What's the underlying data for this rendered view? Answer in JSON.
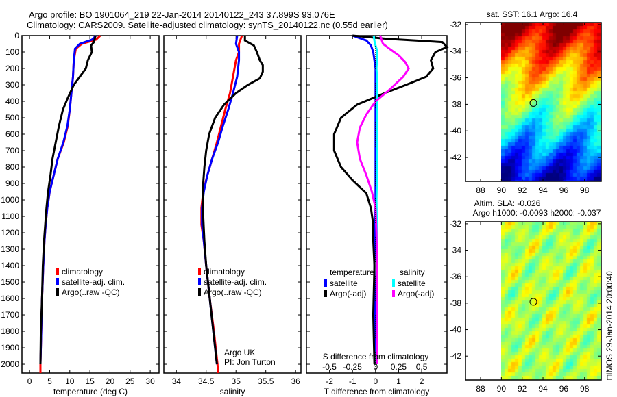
{
  "title_line1": "Argo profile: BO 1901064_219 22-Jan-2014 20140122_243 37.899S 93.076E",
  "title_line2": "Climatology: CARS2009. Satellite-adjusted climatology: synTS_20140122.nc (0.55d earlier)",
  "footer": "IMOS 29-Jan-2014 20:00:40",
  "credit": {
    "line1": "Argo UK",
    "line2": "PI: Jon Turton"
  },
  "colors": {
    "climatology": "#ff0000",
    "satellite": "#0000ff",
    "argo": "#000000",
    "sal_sat": "#00ffff",
    "sal_argo": "#ff00ff"
  },
  "chart_data": [
    {
      "type": "line",
      "name": "temperature",
      "xlabel": "temperature (deg C)",
      "ylabel": "depth",
      "xlim": [
        -1.9,
        32.2
      ],
      "ylim": [
        2054,
        0
      ],
      "xticks": [
        "0",
        "5",
        "10",
        "15",
        "20",
        "25",
        "30"
      ],
      "yticks": [
        "0",
        "100",
        "200",
        "300",
        "400",
        "500",
        "600",
        "700",
        "800",
        "900",
        "1000",
        "1100",
        "1200",
        "1300",
        "1400",
        "1500",
        "1600",
        "1700",
        "1800",
        "1900",
        "2000"
      ],
      "legend": [
        "climatology",
        "satellite-adj. clim.",
        "Argo(..raw -QC)"
      ],
      "series": [
        {
          "name": "climatology",
          "color": "#ff0000",
          "points": [
            [
              17.6,
              0
            ],
            [
              16.5,
              25
            ],
            [
              13,
              50
            ],
            [
              11.5,
              80
            ],
            [
              11,
              150
            ],
            [
              10.8,
              250
            ],
            [
              10.4,
              350
            ],
            [
              10,
              450
            ],
            [
              9.5,
              550
            ],
            [
              8.5,
              650
            ],
            [
              7,
              750
            ],
            [
              6,
              850
            ],
            [
              5,
              950
            ],
            [
              4.4,
              1050
            ],
            [
              4,
              1150
            ],
            [
              3.7,
              1250
            ],
            [
              3.4,
              1400
            ],
            [
              3.1,
              1600
            ],
            [
              2.9,
              1800
            ],
            [
              2.7,
              2000
            ],
            [
              2.7,
              2054
            ]
          ]
        },
        {
          "name": "satellite-adj. clim.",
          "color": "#0000ff",
          "points": [
            [
              16.5,
              0
            ],
            [
              15.5,
              25
            ],
            [
              12.5,
              50
            ],
            [
              11.3,
              80
            ],
            [
              11,
              150
            ],
            [
              10.8,
              250
            ],
            [
              10.4,
              350
            ],
            [
              10,
              450
            ],
            [
              9.4,
              550
            ],
            [
              8.4,
              650
            ],
            [
              7,
              750
            ],
            [
              6,
              850
            ],
            [
              5,
              950
            ],
            [
              4.4,
              1050
            ],
            [
              4,
              1150
            ],
            [
              3.7,
              1250
            ],
            [
              3.4,
              1400
            ],
            [
              3.1,
              1600
            ],
            [
              2.9,
              1800
            ],
            [
              2.7,
              2000
            ]
          ]
        },
        {
          "name": "Argo(..raw -QC)",
          "color": "#000000",
          "points": [
            [
              16.4,
              0
            ],
            [
              16,
              40
            ],
            [
              15.3,
              60
            ],
            [
              15.5,
              100
            ],
            [
              14.5,
              150
            ],
            [
              14,
              200
            ],
            [
              12.5,
              250
            ],
            [
              11,
              300
            ],
            [
              9.5,
              380
            ],
            [
              8.3,
              450
            ],
            [
              7.3,
              550
            ],
            [
              6.5,
              650
            ],
            [
              5.7,
              750
            ],
            [
              5.2,
              850
            ],
            [
              4.6,
              950
            ],
            [
              4.2,
              1050
            ],
            [
              3.9,
              1150
            ],
            [
              3.6,
              1250
            ],
            [
              3.3,
              1400
            ],
            [
              3.1,
              1600
            ],
            [
              2.8,
              1800
            ],
            [
              2.7,
              2000
            ]
          ]
        }
      ]
    },
    {
      "type": "line",
      "name": "salinity",
      "xlabel": "salinity",
      "xlim": [
        33.79,
        36.09
      ],
      "ylim": [
        2054,
        0
      ],
      "xticks": [
        "34",
        "34.5",
        "35",
        "35.5",
        "36"
      ],
      "legend": [
        "climatology",
        "satellite-adj. clim.",
        "Argo(..raw -QC)"
      ],
      "series": [
        {
          "name": "climatology",
          "color": "#ff0000",
          "points": [
            [
              35.1,
              0
            ],
            [
              35.05,
              50
            ],
            [
              35.05,
              100
            ],
            [
              35,
              150
            ],
            [
              34.95,
              250
            ],
            [
              34.9,
              350
            ],
            [
              34.82,
              450
            ],
            [
              34.75,
              550
            ],
            [
              34.68,
              650
            ],
            [
              34.6,
              750
            ],
            [
              34.52,
              850
            ],
            [
              34.45,
              950
            ],
            [
              34.42,
              1050
            ],
            [
              34.42,
              1150
            ],
            [
              34.46,
              1250
            ],
            [
              34.5,
              1400
            ],
            [
              34.56,
              1600
            ],
            [
              34.63,
              1800
            ],
            [
              34.69,
              2000
            ],
            [
              34.7,
              2054
            ]
          ]
        },
        {
          "name": "satellite-adj. clim.",
          "color": "#0000ff",
          "points": [
            [
              35.02,
              0
            ],
            [
              35,
              50
            ],
            [
              35.05,
              100
            ],
            [
              35.05,
              150
            ],
            [
              35.02,
              250
            ],
            [
              34.95,
              350
            ],
            [
              34.87,
              450
            ],
            [
              34.78,
              550
            ],
            [
              34.7,
              650
            ],
            [
              34.6,
              750
            ],
            [
              34.52,
              850
            ],
            [
              34.46,
              950
            ],
            [
              34.43,
              1050
            ],
            [
              34.43,
              1150
            ],
            [
              34.46,
              1250
            ],
            [
              34.5,
              1400
            ],
            [
              34.56,
              1600
            ],
            [
              34.62,
              1800
            ],
            [
              34.68,
              2000
            ]
          ]
        },
        {
          "name": "Argo(..raw -QC)",
          "color": "#000000",
          "points": [
            [
              35.15,
              0
            ],
            [
              35.15,
              30
            ],
            [
              35.3,
              60
            ],
            [
              35.35,
              100
            ],
            [
              35.4,
              150
            ],
            [
              35.45,
              180
            ],
            [
              35.45,
              220
            ],
            [
              35.4,
              260
            ],
            [
              35.2,
              300
            ],
            [
              35,
              350
            ],
            [
              34.8,
              420
            ],
            [
              34.65,
              500
            ],
            [
              34.55,
              600
            ],
            [
              34.5,
              700
            ],
            [
              34.47,
              800
            ],
            [
              34.45,
              900
            ],
            [
              34.44,
              1000
            ],
            [
              34.45,
              1100
            ],
            [
              34.47,
              1250
            ],
            [
              34.5,
              1400
            ],
            [
              34.56,
              1600
            ],
            [
              34.62,
              1800
            ],
            [
              34.68,
              2000
            ]
          ]
        }
      ]
    },
    {
      "type": "line",
      "name": "difference",
      "xlabel": "T difference from climatology",
      "x2label": "S difference from climatology",
      "xlim": [
        -3.0,
        3.1
      ],
      "ylim": [
        2054,
        0
      ],
      "xticks": [
        "-2",
        "-1",
        "0",
        "1",
        "2"
      ],
      "x2ticks": [
        "-0.5",
        "-0.25",
        "0",
        "0.25",
        "0.5"
      ],
      "legend_titles": [
        "temperature",
        "salinity"
      ],
      "legend": [
        "satellite",
        "Argo(-adj)",
        "satellite",
        "Argo(-adj)"
      ],
      "series": [
        {
          "name": "T satellite",
          "color": "#0000ff",
          "points": [
            [
              -1,
              0
            ],
            [
              -0.4,
              30
            ],
            [
              -0.2,
              60
            ],
            [
              -0.1,
              100
            ],
            [
              0,
              200
            ],
            [
              0,
              300
            ],
            [
              0,
              400
            ],
            [
              0,
              1000
            ],
            [
              -0.05,
              1400
            ],
            [
              0,
              2000
            ]
          ]
        },
        {
          "name": "T Argo(-adj)",
          "color": "#000000",
          "points": [
            [
              -1,
              0
            ],
            [
              0.5,
              20
            ],
            [
              2.9,
              40
            ],
            [
              3.1,
              70
            ],
            [
              2.6,
              100
            ],
            [
              2.4,
              150
            ],
            [
              2.5,
              200
            ],
            [
              2.2,
              250
            ],
            [
              1.5,
              290
            ],
            [
              0.4,
              350
            ],
            [
              -0.8,
              420
            ],
            [
              -1.5,
              500
            ],
            [
              -1.8,
              600
            ],
            [
              -1.8,
              700
            ],
            [
              -1.5,
              800
            ],
            [
              -1,
              880
            ],
            [
              -0.4,
              960
            ],
            [
              -0.2,
              1050
            ],
            [
              -0.1,
              1150
            ],
            [
              -0.1,
              1250
            ],
            [
              -0.05,
              1400
            ],
            [
              -0.1,
              1700
            ],
            [
              -0.05,
              2000
            ]
          ]
        },
        {
          "name": "S satellite",
          "color": "#00ffff",
          "scale": "S",
          "points": [
            [
              -0.02,
              0
            ],
            [
              -0.01,
              40
            ],
            [
              0.02,
              100
            ],
            [
              0.01,
              200
            ],
            [
              0.02,
              300
            ],
            [
              0.02,
              400
            ],
            [
              0.02,
              700
            ],
            [
              0.01,
              1000
            ],
            [
              0.02,
              1400
            ],
            [
              0.01,
              2000
            ]
          ]
        },
        {
          "name": "S Argo(-adj)",
          "color": "#ff00ff",
          "scale": "S",
          "points": [
            [
              0.05,
              0
            ],
            [
              0.08,
              50
            ],
            [
              0.15,
              80
            ],
            [
              0.25,
              120
            ],
            [
              0.32,
              160
            ],
            [
              0.36,
              200
            ],
            [
              0.3,
              250
            ],
            [
              0.15,
              330
            ],
            [
              0,
              400
            ],
            [
              -0.1,
              480
            ],
            [
              -0.17,
              560
            ],
            [
              -0.2,
              650
            ],
            [
              -0.17,
              750
            ],
            [
              -0.1,
              850
            ],
            [
              -0.04,
              950
            ],
            [
              0,
              1050
            ],
            [
              0.01,
              1200
            ],
            [
              0.02,
              1500
            ],
            [
              0.02,
              2000
            ]
          ]
        }
      ]
    },
    {
      "type": "heatmap",
      "name": "sst_map",
      "title": "sat. SST: 16.1 Argo: 16.4",
      "xlim": [
        86.55,
        99.6
      ],
      "ylim": [
        -43.8,
        -31.85
      ],
      "xticks": [
        "88",
        "90",
        "92",
        "94",
        "96",
        "98"
      ],
      "yticks": [
        "-32",
        "-34",
        "-36",
        "-38",
        "-40",
        "-42"
      ],
      "argo_position": [
        93.076,
        -37.899
      ]
    },
    {
      "type": "heatmap",
      "name": "sla_map",
      "title": "Altim. SLA: -0.026",
      "subtitle": "Argo h1000: -0.0093 h2000: -0.037",
      "xlim": [
        86.55,
        99.6
      ],
      "ylim": [
        -43.8,
        -31.85
      ],
      "xticks": [
        "88",
        "90",
        "92",
        "94",
        "96",
        "98"
      ],
      "yticks": [
        "-32",
        "-34",
        "-36",
        "-38",
        "-40",
        "-42"
      ],
      "argo_position": [
        93.076,
        -37.899
      ]
    }
  ]
}
